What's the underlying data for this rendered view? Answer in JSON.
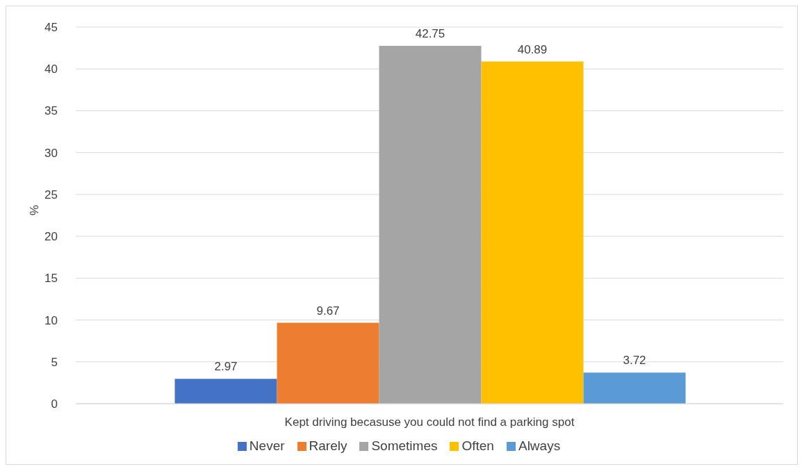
{
  "chart_data": {
    "type": "bar",
    "ylabel": "%",
    "categories": [
      "Kept driving becasuse you could not find a parking spot"
    ],
    "series": [
      {
        "name": "Never",
        "color": "#4472c4",
        "values": [
          2.97
        ]
      },
      {
        "name": "Rarely",
        "color": "#ed7d31",
        "values": [
          9.67
        ]
      },
      {
        "name": "Sometimes",
        "color": "#a5a5a5",
        "values": [
          42.75
        ]
      },
      {
        "name": "Often",
        "color": "#ffc000",
        "values": [
          40.89
        ]
      },
      {
        "name": "Always",
        "color": "#5b9bd5",
        "values": [
          3.72
        ]
      }
    ],
    "ylim": [
      0,
      45
    ],
    "yticks": [
      0,
      5,
      10,
      15,
      20,
      25,
      30,
      35,
      40,
      45
    ],
    "grid": "y",
    "legend": "bottom",
    "data_labels": true
  }
}
